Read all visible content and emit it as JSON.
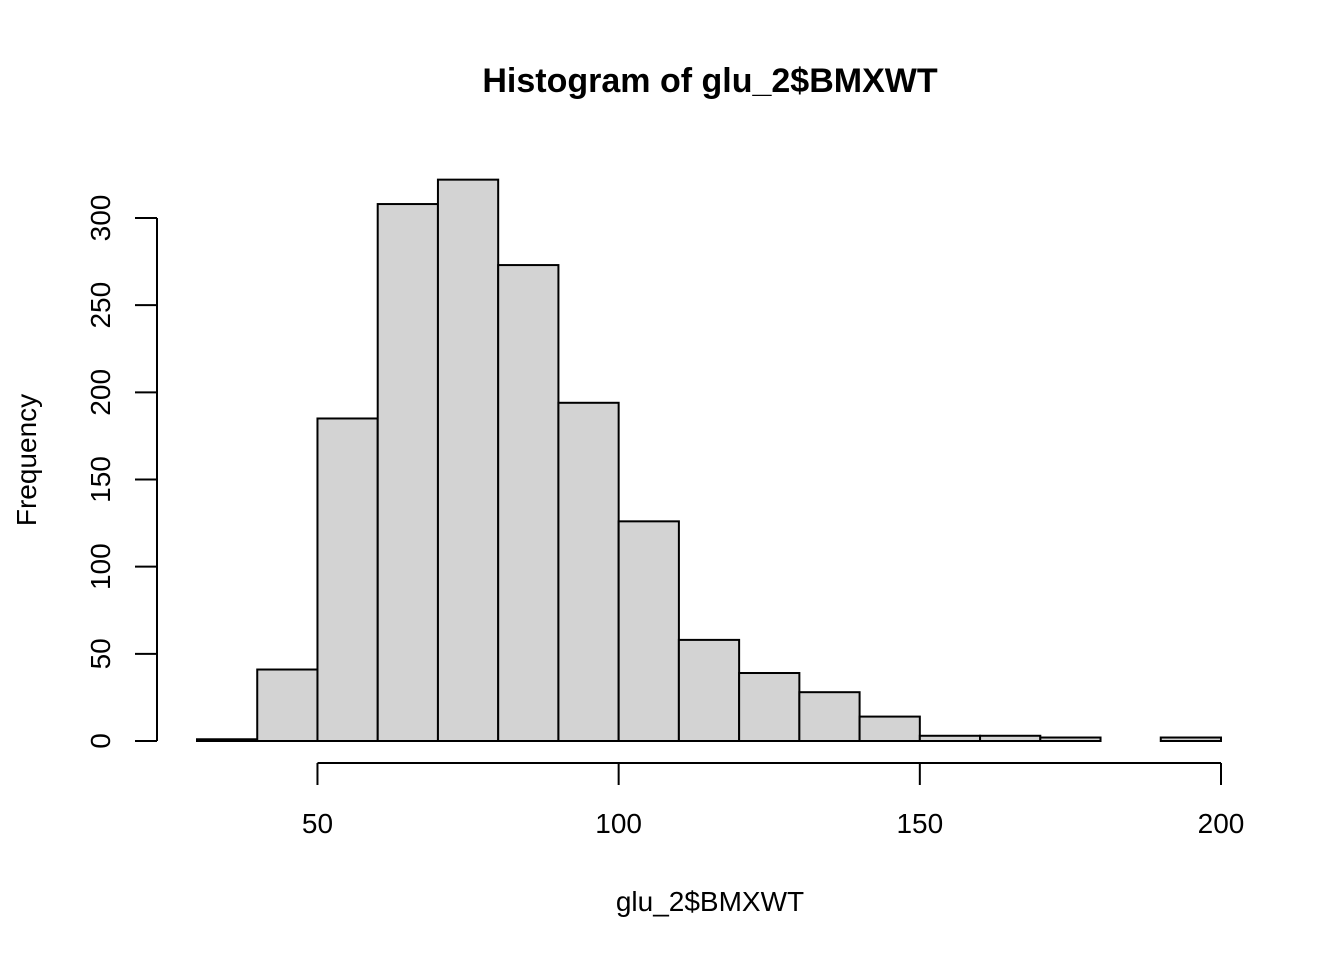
{
  "chart_data": {
    "type": "bar",
    "subtype": "histogram",
    "title": "Histogram of glu_2$BMXWT",
    "xlabel": "glu_2$BMXWT",
    "ylabel": "Frequency",
    "bins": [
      {
        "x0": 30,
        "x1": 40,
        "count": 1
      },
      {
        "x0": 40,
        "x1": 50,
        "count": 41
      },
      {
        "x0": 50,
        "x1": 60,
        "count": 185
      },
      {
        "x0": 60,
        "x1": 70,
        "count": 308
      },
      {
        "x0": 70,
        "x1": 80,
        "count": 322
      },
      {
        "x0": 80,
        "x1": 90,
        "count": 273
      },
      {
        "x0": 90,
        "x1": 100,
        "count": 194
      },
      {
        "x0": 100,
        "x1": 110,
        "count": 126
      },
      {
        "x0": 110,
        "x1": 120,
        "count": 58
      },
      {
        "x0": 120,
        "x1": 130,
        "count": 39
      },
      {
        "x0": 130,
        "x1": 140,
        "count": 28
      },
      {
        "x0": 140,
        "x1": 150,
        "count": 14
      },
      {
        "x0": 150,
        "x1": 160,
        "count": 3
      },
      {
        "x0": 160,
        "x1": 170,
        "count": 3
      },
      {
        "x0": 170,
        "x1": 180,
        "count": 2
      },
      {
        "x0": 180,
        "x1": 190,
        "count": 0
      },
      {
        "x0": 190,
        "x1": 200,
        "count": 2
      }
    ],
    "x_ticks": [
      50,
      100,
      150,
      200
    ],
    "y_ticks": [
      0,
      50,
      100,
      150,
      200,
      250,
      300
    ],
    "xlim": [
      50,
      200
    ],
    "ylim": [
      0,
      300
    ],
    "grid": false,
    "bar_color": "#d3d3d3",
    "edge_color": "#000000"
  }
}
